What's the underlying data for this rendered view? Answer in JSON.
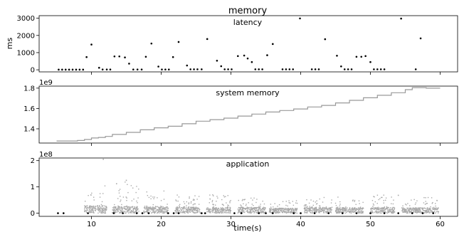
{
  "figure": {
    "title": "memory",
    "xlabel": "time(s)"
  },
  "chart_data": [
    {
      "type": "scatter",
      "title": "latency",
      "ylabel": "ms",
      "xlim": [
        2.5,
        62.5
      ],
      "ylim": [
        -120,
        3150
      ],
      "xticks": [
        10,
        20,
        30,
        40,
        50,
        60
      ],
      "yticks": [
        0,
        1000,
        2000,
        3000
      ],
      "ytick_labels": [
        "0",
        "1000",
        "2000",
        "3000"
      ],
      "scale_label": "",
      "series": [
        {
          "color": "#000000",
          "points": [
            [
              5.3,
              10
            ],
            [
              5.8,
              10
            ],
            [
              6.3,
              10
            ],
            [
              6.8,
              10
            ],
            [
              7.3,
              10
            ],
            [
              7.8,
              10
            ],
            [
              8.3,
              10
            ],
            [
              8.8,
              10
            ],
            [
              9.3,
              740
            ],
            [
              10.0,
              1470
            ],
            [
              11.1,
              120
            ],
            [
              11.6,
              20
            ],
            [
              12.2,
              20
            ],
            [
              12.7,
              20
            ],
            [
              13.3,
              780
            ],
            [
              14.0,
              780
            ],
            [
              14.8,
              720
            ],
            [
              15.4,
              360
            ],
            [
              16.0,
              20
            ],
            [
              16.6,
              20
            ],
            [
              17.2,
              20
            ],
            [
              17.8,
              760
            ],
            [
              18.6,
              1530
            ],
            [
              19.6,
              190
            ],
            [
              20.1,
              20
            ],
            [
              20.6,
              20
            ],
            [
              21.1,
              20
            ],
            [
              21.7,
              740
            ],
            [
              22.5,
              1620
            ],
            [
              23.7,
              250
            ],
            [
              24.2,
              30
            ],
            [
              24.7,
              30
            ],
            [
              25.2,
              30
            ],
            [
              25.8,
              30
            ],
            [
              26.6,
              1790
            ],
            [
              28.0,
              530
            ],
            [
              28.6,
              210
            ],
            [
              29.1,
              30
            ],
            [
              29.6,
              30
            ],
            [
              30.1,
              30
            ],
            [
              31.0,
              800
            ],
            [
              31.9,
              830
            ],
            [
              32.4,
              660
            ],
            [
              33.0,
              450
            ],
            [
              33.5,
              30
            ],
            [
              34.0,
              30
            ],
            [
              34.5,
              30
            ],
            [
              35.2,
              850
            ],
            [
              36.0,
              1500
            ],
            [
              37.4,
              30
            ],
            [
              37.9,
              30
            ],
            [
              38.4,
              30
            ],
            [
              38.9,
              30
            ],
            [
              39.9,
              2990
            ],
            [
              41.6,
              30
            ],
            [
              42.1,
              30
            ],
            [
              42.6,
              30
            ],
            [
              43.5,
              1780
            ],
            [
              45.2,
              820
            ],
            [
              45.8,
              200
            ],
            [
              46.3,
              30
            ],
            [
              46.8,
              30
            ],
            [
              47.3,
              30
            ],
            [
              48.0,
              760
            ],
            [
              48.7,
              760
            ],
            [
              49.3,
              800
            ],
            [
              50.0,
              450
            ],
            [
              50.5,
              30
            ],
            [
              51.0,
              30
            ],
            [
              51.5,
              30
            ],
            [
              52.0,
              30
            ],
            [
              54.4,
              2980
            ],
            [
              56.5,
              30
            ],
            [
              57.2,
              1830
            ]
          ]
        }
      ]
    },
    {
      "type": "line",
      "title": "system memory",
      "xlim": [
        2.5,
        62.5
      ],
      "ylim": [
        1260000000.0,
        1820000000.0
      ],
      "xticks": [
        10,
        20,
        30,
        40,
        50,
        60
      ],
      "yticks": [
        1400000000.0,
        1600000000.0,
        1800000000.0
      ],
      "ytick_labels": [
        "1.4",
        "1.6",
        "1.8"
      ],
      "scale_label": "1e9",
      "series": [
        {
          "color": "#999999",
          "points": [
            [
              5,
              1280000000.0
            ],
            [
              8,
              1285000000.0
            ],
            [
              9,
              1295000000.0
            ],
            [
              10,
              1310000000.0
            ],
            [
              11,
              1315000000.0
            ],
            [
              12,
              1325000000.0
            ],
            [
              13,
              1345000000.0
            ],
            [
              15,
              1365000000.0
            ],
            [
              17,
              1390000000.0
            ],
            [
              19,
              1410000000.0
            ],
            [
              21,
              1425000000.0
            ],
            [
              23,
              1450000000.0
            ],
            [
              25,
              1475000000.0
            ],
            [
              27,
              1490000000.0
            ],
            [
              29,
              1505000000.0
            ],
            [
              31,
              1525000000.0
            ],
            [
              33,
              1545000000.0
            ],
            [
              35,
              1565000000.0
            ],
            [
              37,
              1580000000.0
            ],
            [
              39,
              1595000000.0
            ],
            [
              41,
              1615000000.0
            ],
            [
              43,
              1630000000.0
            ],
            [
              45,
              1655000000.0
            ],
            [
              47,
              1680000000.0
            ],
            [
              49,
              1705000000.0
            ],
            [
              51,
              1730000000.0
            ],
            [
              53,
              1755000000.0
            ],
            [
              55,
              1785000000.0
            ],
            [
              56,
              1805000000.0
            ],
            [
              58,
              1800000000.0
            ],
            [
              59,
              1800000000.0
            ],
            [
              60,
              1800000000.0
            ]
          ]
        }
      ]
    },
    {
      "type": "scatter",
      "title": "application",
      "xlim": [
        2.5,
        62.5
      ],
      "ylim": [
        -12000000.0,
        210000000.0
      ],
      "xticks": [
        10,
        20,
        30,
        40,
        50,
        60
      ],
      "yticks": [
        0,
        100000000.0,
        200000000.0
      ],
      "ytick_labels": [
        "0",
        "1",
        "2"
      ],
      "scale_label": "1e8",
      "series": [
        {
          "color": "#aaaaaa",
          "clusters": [
            {
              "x_range": [
                9.0,
                12.2
              ],
              "y_typical": 18000000.0,
              "y_max": 110000000.0
            },
            {
              "x_range": [
                13.0,
                16.8
              ],
              "y_typical": 16000000.0,
              "y_max": 125000000.0
            },
            {
              "x_range": [
                17.5,
                21.0
              ],
              "y_typical": 15000000.0,
              "y_max": 85000000.0
            },
            {
              "x_range": [
                22.0,
                25.6
              ],
              "y_typical": 15000000.0,
              "y_max": 70000000.0
            },
            {
              "x_range": [
                26.5,
                30.0
              ],
              "y_typical": 13000000.0,
              "y_max": 70000000.0
            },
            {
              "x_range": [
                31.0,
                35.0
              ],
              "y_typical": 14000000.0,
              "y_max": 60000000.0
            },
            {
              "x_range": [
                35.5,
                39.5
              ],
              "y_typical": 12000000.0,
              "y_max": 50000000.0
            },
            {
              "x_range": [
                40.5,
                44.5
              ],
              "y_typical": 14000000.0,
              "y_max": 60000000.0
            },
            {
              "x_range": [
                45.0,
                49.0
              ],
              "y_typical": 13000000.0,
              "y_max": 65000000.0
            },
            {
              "x_range": [
                50.0,
                53.5
              ],
              "y_typical": 14000000.0,
              "y_max": 70000000.0
            },
            {
              "x_range": [
                54.5,
                59.8
              ],
              "y_typical": 13000000.0,
              "y_max": 60000000.0
            }
          ],
          "outliers": [
            [
              11.7,
              205000000.0
            ],
            [
              13.6,
              112000000.0
            ],
            [
              15.0,
              125000000.0
            ],
            [
              54.0,
              68000000.0
            ]
          ]
        },
        {
          "color": "#000000",
          "points": [
            [
              5.2,
              0
            ],
            [
              6.0,
              0
            ],
            [
              9.5,
              0
            ],
            [
              13.2,
              0
            ],
            [
              14.5,
              0
            ],
            [
              16.5,
              0
            ],
            [
              17.3,
              0
            ],
            [
              18.2,
              0
            ],
            [
              21.0,
              0
            ],
            [
              21.8,
              0
            ],
            [
              22.5,
              0
            ],
            [
              25.8,
              0
            ],
            [
              26.3,
              0
            ],
            [
              30.5,
              0
            ],
            [
              31.5,
              0
            ],
            [
              34.0,
              0
            ],
            [
              35.0,
              0
            ],
            [
              36.0,
              0
            ],
            [
              39.0,
              0
            ],
            [
              40.0,
              0
            ],
            [
              42.0,
              0
            ],
            [
              44.0,
              0
            ],
            [
              46.0,
              0
            ],
            [
              48.0,
              0
            ],
            [
              50.0,
              0
            ],
            [
              52.0,
              0
            ],
            [
              54.0,
              0
            ],
            [
              56.0,
              0
            ],
            [
              57.5,
              0
            ],
            [
              59.0,
              0
            ]
          ]
        }
      ]
    }
  ]
}
